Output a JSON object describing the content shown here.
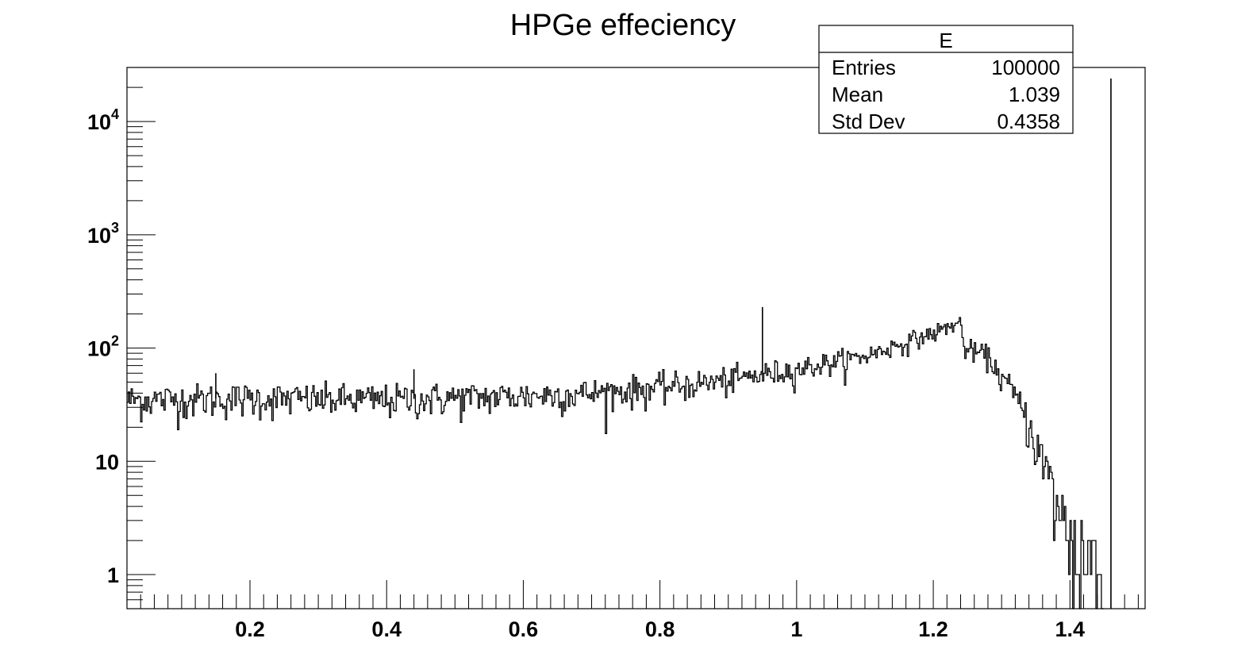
{
  "chart_data": {
    "type": "bar",
    "title": "HPGe effeciency",
    "xlabel": "",
    "ylabel": "",
    "xlim": [
      0.02,
      1.51
    ],
    "ylim": [
      0.5,
      30000
    ],
    "log_y": true,
    "x_ticks": [
      0.2,
      0.4,
      0.6,
      0.8,
      1,
      1.2,
      1.4
    ],
    "x_tick_labels": [
      "0.2",
      "0.4",
      "0.6",
      "0.8",
      "1",
      "1.2",
      "1.4"
    ],
    "y_ticks": [
      1,
      10,
      100,
      1000,
      10000
    ],
    "y_tick_labels": [
      {
        "base": "1",
        "exp": ""
      },
      {
        "base": "10",
        "exp": ""
      },
      {
        "base": "10",
        "exp": "2"
      },
      {
        "base": "10",
        "exp": "3"
      },
      {
        "base": "10",
        "exp": "4"
      }
    ],
    "histogram": {
      "name": "E",
      "bin_width": 0.002,
      "profile": [
        [
          0.02,
          35
        ],
        [
          0.2,
          36
        ],
        [
          0.4,
          35
        ],
        [
          0.6,
          38
        ],
        [
          0.7,
          40
        ],
        [
          0.8,
          45
        ],
        [
          0.9,
          52
        ],
        [
          1.0,
          65
        ],
        [
          1.1,
          85
        ],
        [
          1.2,
          135
        ],
        [
          1.24,
          170
        ],
        [
          1.245,
          100
        ],
        [
          1.28,
          85
        ],
        [
          1.3,
          55
        ],
        [
          1.32,
          38
        ],
        [
          1.34,
          22
        ],
        [
          1.36,
          10
        ],
        [
          1.38,
          4.5
        ],
        [
          1.4,
          2.2
        ],
        [
          1.42,
          1.5
        ],
        [
          1.45,
          1
        ]
      ],
      "spikes": [
        [
          0.15,
          60
        ],
        [
          0.44,
          65
        ],
        [
          0.95,
          230
        ],
        [
          1.46,
          24000
        ]
      ]
    },
    "stats_box": {
      "title": "E",
      "rows": [
        {
          "label": "Entries",
          "value": "100000"
        },
        {
          "label": "Mean",
          "value": "1.039"
        },
        {
          "label": "Std Dev",
          "value": "0.4358"
        }
      ]
    },
    "grid": false,
    "legend": "top-right"
  }
}
